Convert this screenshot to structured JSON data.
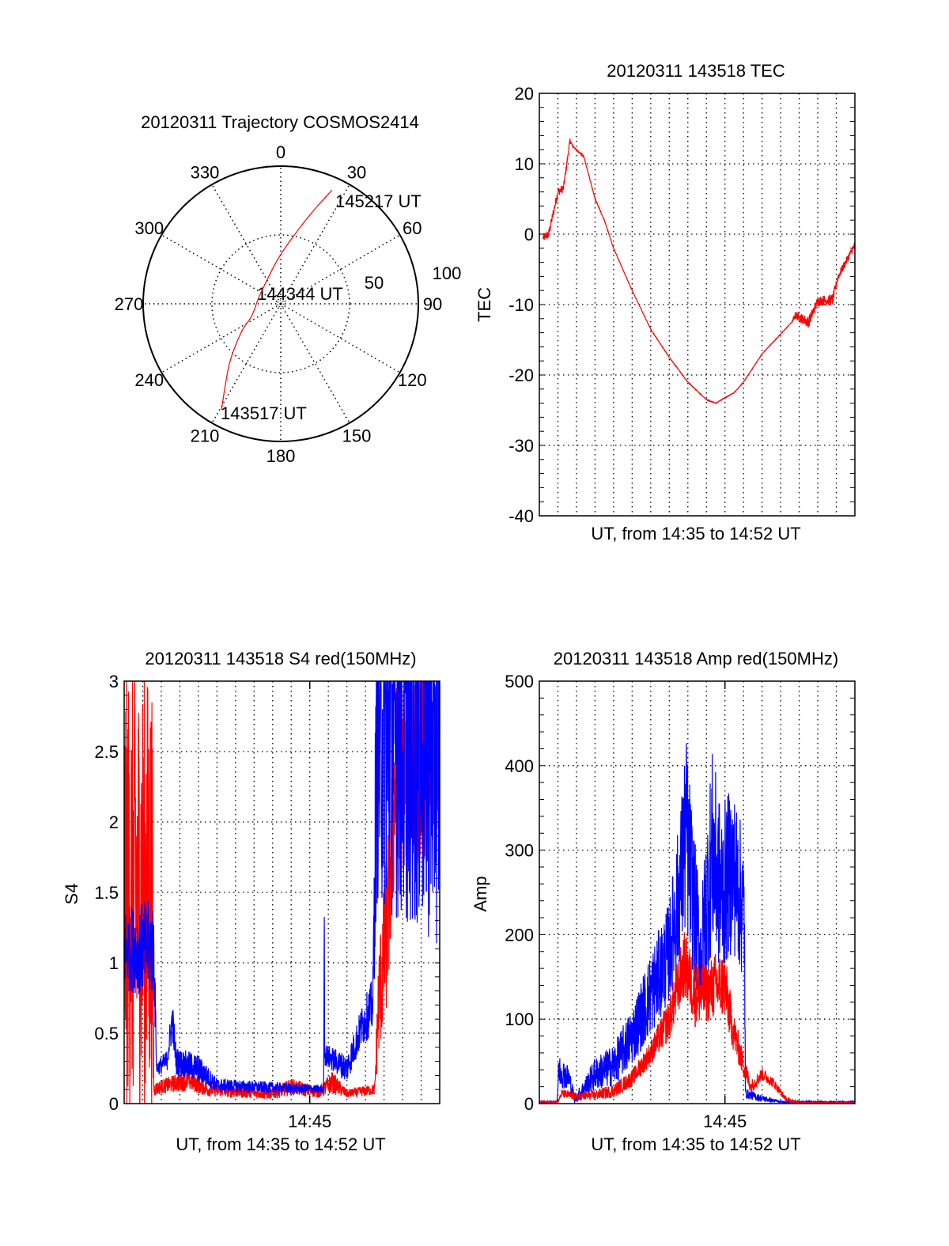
{
  "colors": {
    "red": "#ff0000",
    "blue": "#0000ff",
    "axis": "#000000"
  },
  "chart_data": [
    {
      "type": "polar",
      "title": "20120311 Trajectory COSMOS2414",
      "angle_ticks": [
        "0",
        "30",
        "60",
        "90",
        "120",
        "150",
        "180",
        "210",
        "240",
        "270",
        "300",
        "330"
      ],
      "radius_ticks": [
        "50",
        "100"
      ],
      "rlim": [
        0,
        100
      ],
      "grid": true,
      "annotations": [
        {
          "text": "145217 UT",
          "azimuth": 24.3,
          "radius": 90.8
        },
        {
          "text": "144344 UT",
          "azimuth": 299,
          "radius": 16.5
        },
        {
          "text": "143517 UT",
          "azimuth": 209.2,
          "radius": 88.3
        }
      ],
      "series": [
        {
          "name": "trajectory",
          "color": "red",
          "points": [
            [
              209.2,
              88.3
            ],
            [
              220.5,
              57.5
            ],
            [
              234.2,
              35.4
            ],
            [
              246.6,
              23.2
            ],
            [
              274,
              17.3
            ],
            [
              299.2,
              16.5
            ],
            [
              354.7,
              31.2
            ],
            [
              10.1,
              49
            ],
            [
              19,
              70.5
            ],
            [
              24.3,
              90.8
            ]
          ]
        }
      ]
    },
    {
      "type": "line",
      "title": "20120311 143518 TEC",
      "xlabel": "UT, from 14:35 to 14:52 UT",
      "ylabel": "TEC",
      "xlim": [
        0,
        17
      ],
      "ylim": [
        -40,
        20
      ],
      "yticks": [
        -40,
        -30,
        -20,
        -10,
        0,
        10,
        20
      ],
      "yminor": 2,
      "xticks": [],
      "grid": true,
      "series": [
        {
          "name": "TEC",
          "color": "red",
          "keypoints": [
            [
              0.2,
              -0.5,
              0.6
            ],
            [
              0.5,
              0,
              0.6
            ],
            [
              1,
              6,
              0.6
            ],
            [
              1.3,
              6.5,
              0.6
            ],
            [
              1.65,
              13.3,
              0.4
            ],
            [
              1.8,
              12.5,
              0.1
            ],
            [
              2.4,
              11,
              0.1
            ],
            [
              3,
              5,
              0.1
            ],
            [
              3.5,
              2,
              0.1
            ],
            [
              4,
              -2,
              0.05
            ],
            [
              5,
              -8,
              0.05
            ],
            [
              6,
              -13.5,
              0.05
            ],
            [
              7,
              -17.5,
              0.05
            ],
            [
              8,
              -21,
              0.05
            ],
            [
              9,
              -23.5,
              0.05
            ],
            [
              9.5,
              -24,
              0.05
            ],
            [
              10.5,
              -22.5,
              0.05
            ],
            [
              11,
              -21,
              0.05
            ],
            [
              12,
              -17,
              0.05
            ],
            [
              13.6,
              -12.5,
              0.05
            ],
            [
              13.8,
              -11.5,
              0.6
            ],
            [
              14.5,
              -12.5,
              0.8
            ],
            [
              15,
              -9.5,
              0.7
            ],
            [
              15.8,
              -9.3,
              0.8
            ],
            [
              16.1,
              -6,
              0.6
            ],
            [
              17,
              -1.5,
              0.5
            ]
          ]
        }
      ]
    },
    {
      "type": "line",
      "title": "20120311 143518 S4 red(150MHz)",
      "xlabel": "UT, from 14:35 to 14:52 UT",
      "ylabel": "S4",
      "xlim": [
        0,
        17
      ],
      "ylim": [
        0,
        3
      ],
      "yticks": [
        0,
        0.5,
        1,
        1.5,
        2,
        2.5,
        3
      ],
      "ytick_labels": [
        "0",
        "0.5",
        "1",
        "1.5",
        "2",
        "2.5",
        "3"
      ],
      "yminor": 0.1,
      "xticks": [
        {
          "value": 10,
          "label": "14:45"
        }
      ],
      "grid": true,
      "series": [
        {
          "name": "S4 red",
          "color": "red",
          "keypoints": [
            [
              0,
              1.5,
              1.6
            ],
            [
              1.5,
              1.5,
              1.6
            ],
            [
              1.6,
              0.1,
              0.05
            ],
            [
              2,
              0.12,
              0.05
            ],
            [
              3.5,
              0.17,
              0.08
            ],
            [
              4.5,
              0.1,
              0.05
            ],
            [
              8,
              0.07,
              0.04
            ],
            [
              9,
              0.12,
              0.06
            ],
            [
              10.5,
              0.08,
              0.04
            ],
            [
              11.2,
              0.15,
              0.08
            ],
            [
              12,
              0.07,
              0.03
            ],
            [
              13.5,
              0.1,
              0.04
            ],
            [
              13.7,
              0.7,
              0.4
            ],
            [
              14.2,
              1.3,
              0.6
            ],
            [
              14.6,
              2.3,
              0.7
            ],
            [
              17,
              2.5,
              0.7
            ]
          ]
        },
        {
          "name": "S4 blue",
          "color": "blue",
          "keypoints": [
            [
              0,
              1.1,
              0.3
            ],
            [
              1.6,
              1.1,
              0.35
            ],
            [
              1.75,
              0.25,
              0.05
            ],
            [
              2.3,
              0.3,
              0.08
            ],
            [
              2.6,
              0.6,
              0.15
            ],
            [
              2.8,
              0.3,
              0.1
            ],
            [
              4,
              0.25,
              0.1
            ],
            [
              5,
              0.13,
              0.05
            ],
            [
              10.75,
              0.1,
              0.03
            ],
            [
              10.78,
              1.5,
              0
            ],
            [
              10.8,
              0.35,
              0.08
            ],
            [
              12,
              0.25,
              0.1
            ],
            [
              12.8,
              0.55,
              0.15
            ],
            [
              13.4,
              0.7,
              0.2
            ],
            [
              13.6,
              2.6,
              1.2
            ],
            [
              17,
              2.6,
              1.5
            ]
          ]
        }
      ]
    },
    {
      "type": "line",
      "title": "20120311 143518 Amp red(150MHz)",
      "xlabel": "UT, from 14:35 to 14:52 UT",
      "ylabel": "Amp",
      "xlim": [
        0,
        17
      ],
      "ylim": [
        0,
        500
      ],
      "yticks": [
        0,
        100,
        200,
        300,
        400,
        500
      ],
      "yminor": 20,
      "xticks": [
        {
          "value": 10,
          "label": "14:45"
        }
      ],
      "grid": true,
      "series": [
        {
          "name": "Amp blue",
          "color": "blue",
          "keypoints": [
            [
              0,
              2,
              1
            ],
            [
              0.95,
              2,
              1
            ],
            [
              1.05,
              40,
              20
            ],
            [
              1.6,
              30,
              15
            ],
            [
              1.9,
              5,
              5
            ],
            [
              2.3,
              15,
              10
            ],
            [
              3,
              35,
              20
            ],
            [
              4,
              45,
              25
            ],
            [
              5,
              80,
              35
            ],
            [
              6,
              130,
              50
            ],
            [
              7,
              180,
              60
            ],
            [
              7.6,
              260,
              90
            ],
            [
              7.9,
              320,
              120
            ],
            [
              8.3,
              240,
              90
            ],
            [
              8.7,
              170,
              70
            ],
            [
              9.3,
              300,
              120
            ],
            [
              9.8,
              250,
              100
            ],
            [
              10.4,
              280,
              100
            ],
            [
              10.9,
              240,
              90
            ],
            [
              11.05,
              220,
              80
            ],
            [
              11.1,
              12,
              6
            ],
            [
              12,
              6,
              4
            ],
            [
              13,
              2,
              1
            ],
            [
              17,
              2,
              1
            ]
          ]
        },
        {
          "name": "Amp red",
          "color": "red",
          "keypoints": [
            [
              0,
              2,
              1
            ],
            [
              1,
              2,
              1
            ],
            [
              1.2,
              12,
              5
            ],
            [
              2,
              8,
              5
            ],
            [
              3,
              10,
              6
            ],
            [
              4,
              15,
              8
            ],
            [
              5,
              30,
              10
            ],
            [
              6,
              60,
              15
            ],
            [
              7,
              100,
              25
            ],
            [
              7.8,
              165,
              40
            ],
            [
              8.4,
              130,
              40
            ],
            [
              9,
              130,
              35
            ],
            [
              9.5,
              140,
              40
            ],
            [
              10,
              140,
              40
            ],
            [
              10.4,
              90,
              25
            ],
            [
              11,
              45,
              15
            ],
            [
              11.4,
              20,
              8
            ],
            [
              12,
              35,
              8
            ],
            [
              12.6,
              25,
              6
            ],
            [
              13.3,
              5,
              3
            ],
            [
              14,
              1,
              1
            ],
            [
              17,
              1,
              1
            ]
          ]
        }
      ]
    }
  ]
}
